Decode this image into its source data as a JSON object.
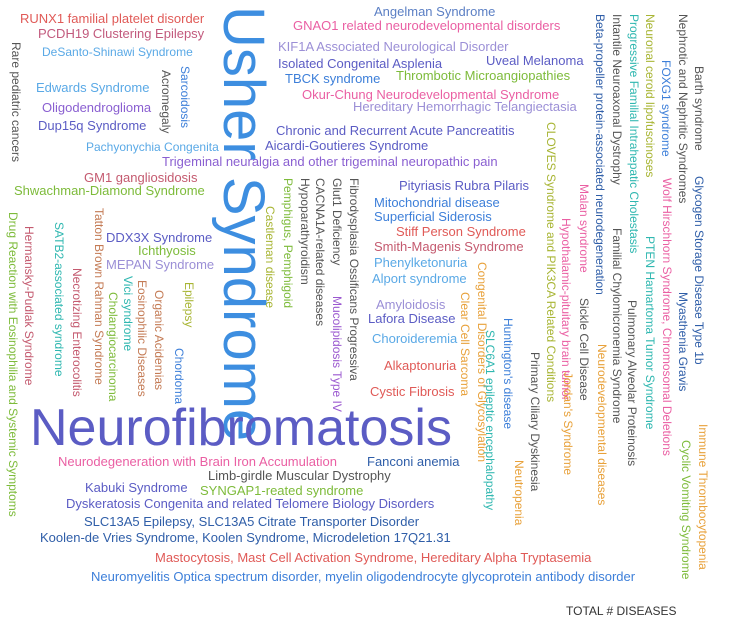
{
  "caption": "TOTAL # DISEASES",
  "colors": {
    "red": "#e05a57",
    "pink": "#ea5fa3",
    "purple": "#8a5fd1",
    "indigo": "#5b5cc4",
    "blue": "#3d7fd9",
    "lightblue": "#5aa9e6",
    "teal": "#2fb7b0",
    "green": "#7dbb3a",
    "olive": "#a8b534",
    "orange": "#e8a13a",
    "brown": "#c47b55",
    "gray": "#555555",
    "darkblue": "#2f5ea8",
    "violet": "#9b59d0"
  },
  "words": [
    {
      "id": "w1",
      "text": "RUNX1 familial platelet disorder",
      "color": "#e05a57"
    },
    {
      "id": "w2",
      "text": "PCDH19 Clustering Epilepsy",
      "color": "#c25a7d"
    },
    {
      "id": "w3",
      "text": "DeSanto-Shinawi Syndrome",
      "color": "#5aa9e6"
    },
    {
      "id": "w4",
      "text": "Rare pediatric cancers",
      "color": "#555555"
    },
    {
      "id": "w5",
      "text": "Edwards Syndrome",
      "color": "#5aa9e6"
    },
    {
      "id": "w6",
      "text": "Acromegaly",
      "color": "#555555"
    },
    {
      "id": "w7",
      "text": "Sarcoidosis",
      "color": "#3d7fd9"
    },
    {
      "id": "w8",
      "text": "Oligodendroglioma",
      "color": "#8a5fd1"
    },
    {
      "id": "w9",
      "text": "Dup15q Syndrome",
      "color": "#5b5cc4"
    },
    {
      "id": "w10",
      "text": "Pachyonychia Congenita",
      "color": "#5aa9e6"
    },
    {
      "id": "w11",
      "text": "Usher Syndrome",
      "color": "#3d8ee0"
    },
    {
      "id": "w12",
      "text": "Angelman Syndrome",
      "color": "#5b7fc4"
    },
    {
      "id": "w13",
      "text": "GNAO1 related neurodevelopmental disorders",
      "color": "#ea5fa3"
    },
    {
      "id": "w14",
      "text": "KIF1A Associated Neurological Disorder",
      "color": "#9b8fd6"
    },
    {
      "id": "w15",
      "text": "Isolated Congenital Asplenia",
      "color": "#5b5cc4"
    },
    {
      "id": "w16",
      "text": "Uveal Melanoma",
      "color": "#5b5cc4"
    },
    {
      "id": "w17",
      "text": "TBCK syndrome",
      "color": "#3d7fd9"
    },
    {
      "id": "w18",
      "text": "Thrombotic Microangiopathies",
      "color": "#7dbb3a"
    },
    {
      "id": "w19",
      "text": "Okur-Chung Neurodevelopmental Syndrome",
      "color": "#ea5fa3"
    },
    {
      "id": "w20",
      "text": "Hereditary Hemorrhagic Telangiectasia",
      "color": "#9b8fd6"
    },
    {
      "id": "w21",
      "text": "Chronic and Recurrent Acute Pancreatitis",
      "color": "#5b5cc4"
    },
    {
      "id": "w22",
      "text": "Aicardi-Goutieres Syndrome",
      "color": "#5b5cc4"
    },
    {
      "id": "w23",
      "text": "Trigeminal neuralgia and other trigeminal neuropathic pain",
      "color": "#8a5fd1"
    },
    {
      "id": "w24",
      "text": "GM1 gangliosidosis",
      "color": "#c45a6f"
    },
    {
      "id": "w25",
      "text": "Shwachman-Diamond Syndrome",
      "color": "#7dbb3a"
    },
    {
      "id": "w26",
      "text": "Pityriasis Rubra Pilaris",
      "color": "#5b5cc4"
    },
    {
      "id": "w27",
      "text": "Mitochondrial disease",
      "color": "#3d7fd9"
    },
    {
      "id": "w28",
      "text": "Superficial Siderosis",
      "color": "#3d7fd9"
    },
    {
      "id": "w29",
      "text": "Stiff Person Syndrome",
      "color": "#e05a57"
    },
    {
      "id": "w30",
      "text": "Smith-Magenis Syndrome",
      "color": "#c45a6f"
    },
    {
      "id": "w31",
      "text": "Phenylketonuria",
      "color": "#5aa9e6"
    },
    {
      "id": "w32",
      "text": "Alport syndrome",
      "color": "#5aa9e6"
    },
    {
      "id": "w33",
      "text": "Amyloidosis",
      "color": "#9b8fd6"
    },
    {
      "id": "w34",
      "text": "Lafora Disease",
      "color": "#5b5cc4"
    },
    {
      "id": "w35",
      "text": "Choroideremia",
      "color": "#5aa9e6"
    },
    {
      "id": "w36",
      "text": "Alkaptonuria",
      "color": "#e05a57"
    },
    {
      "id": "w37",
      "text": "Cystic Fibrosis",
      "color": "#e05a57"
    },
    {
      "id": "w38",
      "text": "DDX3X Syndrome",
      "color": "#5b5cc4"
    },
    {
      "id": "w39",
      "text": "Ichthyosis",
      "color": "#7dbb3a"
    },
    {
      "id": "w40",
      "text": "MEPAN Syndrome",
      "color": "#9b8fd6"
    },
    {
      "id": "w41",
      "text": "Drug Reaction with Eosinophilia and Systemic Symptoms",
      "color": "#7dbb3a"
    },
    {
      "id": "w42",
      "text": "Hermansky-Pudlak Syndrome",
      "color": "#c45a6f"
    },
    {
      "id": "w43",
      "text": "SATB2-associated syndrome",
      "color": "#2fb7b0"
    },
    {
      "id": "w44",
      "text": "Tatton Brown Rahman Syndrome",
      "color": "#c47b55"
    },
    {
      "id": "w45",
      "text": "Necrotizing Enterocolitis",
      "color": "#c45a6f"
    },
    {
      "id": "w46",
      "text": "Vici syndrome",
      "color": "#2fb7b0"
    },
    {
      "id": "w47",
      "text": "Cholangiocarcinoma",
      "color": "#7dbb3a"
    },
    {
      "id": "w48",
      "text": "Eosinophilic Diseases",
      "color": "#c47b55"
    },
    {
      "id": "w49",
      "text": "Organic Acidemias",
      "color": "#c47b55"
    },
    {
      "id": "w50",
      "text": "Epilepsy",
      "color": "#a8b534"
    },
    {
      "id": "w51",
      "text": "Chordoma",
      "color": "#3d7fd9"
    },
    {
      "id": "w52",
      "text": "Pemphigus, Pemphigoid",
      "color": "#7dbb3a"
    },
    {
      "id": "w53",
      "text": "Castleman disease",
      "color": "#a8b534"
    },
    {
      "id": "w54",
      "text": "Hypoparathyroidism",
      "color": "#555555"
    },
    {
      "id": "w55",
      "text": "CACNA1A-related diseases",
      "color": "#555555"
    },
    {
      "id": "w56",
      "text": "Glut1 Deficiency",
      "color": "#555555"
    },
    {
      "id": "w57",
      "text": "Mucolipidosis Type IV",
      "color": "#9b59d0"
    },
    {
      "id": "w58",
      "text": "Fibrodysplasia Ossificans Progressiva",
      "color": "#555555"
    },
    {
      "id": "w59",
      "text": "Clear Cell Sarcoma",
      "color": "#e8a13a"
    },
    {
      "id": "w60",
      "text": "Congenital Disorders of Glycosylation",
      "color": "#e8a13a"
    },
    {
      "id": "w61",
      "text": "SLC6A1 epileptic encephalopathy",
      "color": "#2fb7b0"
    },
    {
      "id": "w62",
      "text": "Huntington's disease",
      "color": "#3d7fd9"
    },
    {
      "id": "w63",
      "text": "Neutropenia",
      "color": "#e8a13a"
    },
    {
      "id": "w64",
      "text": "Primary Ciliary Dyskinesia",
      "color": "#555555"
    },
    {
      "id": "w65",
      "text": "CLOVES Syndrome and PIK3CA Related Conditions",
      "color": "#a8b534"
    },
    {
      "id": "w66",
      "text": "Hypothalamic-pituitary brain tumor",
      "color": "#ea5fa3"
    },
    {
      "id": "w67",
      "text": "Jordan's Syndrome",
      "color": "#e8a13a"
    },
    {
      "id": "w68",
      "text": "Malan syndrome",
      "color": "#ea5fa3"
    },
    {
      "id": "w69",
      "text": "Sickle Cell Disease",
      "color": "#555555"
    },
    {
      "id": "w70",
      "text": "Beta-propeller protein-associated neurodegeneration",
      "color": "#2f5ea8"
    },
    {
      "id": "w71",
      "text": "Intantile Neuroaxonal Dystrophy",
      "color": "#555555"
    },
    {
      "id": "w72",
      "text": "Familial Chylomicronemia Syndrome",
      "color": "#555555"
    },
    {
      "id": "w73",
      "text": "Neurodevelopmental diseases",
      "color": "#e8a13a"
    },
    {
      "id": "w74",
      "text": "Progressive Familial Intrahepatic Cholestasis",
      "color": "#2fb7b0"
    },
    {
      "id": "w75",
      "text": "Neuronal ceroid lipofuscinoses",
      "color": "#a8b534"
    },
    {
      "id": "w76",
      "text": "PTEN Hamartoma Tumor Syndrome",
      "color": "#2fb7b0"
    },
    {
      "id": "w77",
      "text": "Pulmonary Alveolar Proteinosis",
      "color": "#555555"
    },
    {
      "id": "w78",
      "text": "FOXG1 syndrome",
      "color": "#3d7fd9"
    },
    {
      "id": "w79",
      "text": "Wolf Hirschhorn Syndrome, Chromosomal Deletions",
      "color": "#ea5fa3"
    },
    {
      "id": "w80",
      "text": "Nephrotic and Nephritic Syndromes",
      "color": "#555555"
    },
    {
      "id": "w81",
      "text": "Myasthenia Gravis",
      "color": "#2f5ea8"
    },
    {
      "id": "w82",
      "text": "Barth syndrome",
      "color": "#555555"
    },
    {
      "id": "w83",
      "text": "Glycogen Storage Disease Type 1b",
      "color": "#2f5ea8"
    },
    {
      "id": "w84",
      "text": "Immune Thrombocytopenia",
      "color": "#e8a13a"
    },
    {
      "id": "w85",
      "text": "Cyclic Vomiting Syndrome",
      "color": "#7dbb3a"
    },
    {
      "id": "w86",
      "text": "Neurofibromatosis",
      "color": "#5b5cc4"
    },
    {
      "id": "w87",
      "text": "Neurodegeneration with Brain Iron Accumulation",
      "color": "#ea5fa3"
    },
    {
      "id": "w88",
      "text": "Fanconi anemia",
      "color": "#2f5ea8"
    },
    {
      "id": "w89",
      "text": "Limb-girdle Muscular Dystrophy",
      "color": "#555555"
    },
    {
      "id": "w90",
      "text": "Kabuki Syndrome",
      "color": "#5b5cc4"
    },
    {
      "id": "w91",
      "text": "SYNGAP1-reated syndrome",
      "color": "#7dbb3a"
    },
    {
      "id": "w92",
      "text": "Dyskeratosis Congenita and related Telomere Biology Disorders",
      "color": "#5b5cc4"
    },
    {
      "id": "w93",
      "text": "SLC13A5 Epilepsy, SLC13A5 Citrate Transporter Disorder",
      "color": "#2f5ea8"
    },
    {
      "id": "w94",
      "text": "Koolen-de Vries Syndrome, Koolen Syndrome, Microdeletion 17Q21.31",
      "color": "#2f5ea8"
    },
    {
      "id": "w95",
      "text": "Mastocytosis, Mast Cell Activation Syndrome, Hereditary Alpha Tryptasemia",
      "color": "#e05a57"
    },
    {
      "id": "w96",
      "text": "Neuromyelitis Optica spectrum disorder, myelin oligodendrocyte glycoprotein antibody disorder",
      "color": "#3d7fd9"
    }
  ]
}
